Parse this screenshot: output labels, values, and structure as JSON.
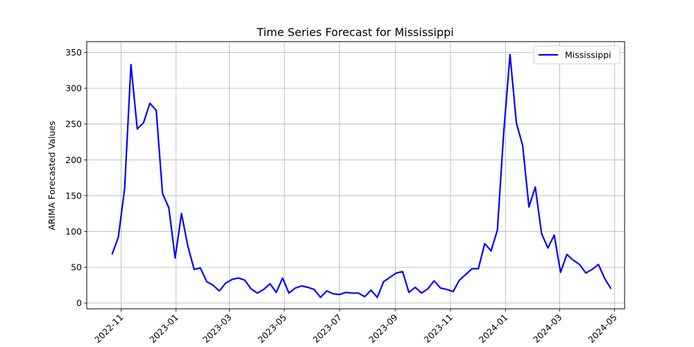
{
  "chart_data": {
    "type": "line",
    "title": "Time Series Forecast for Mississippi",
    "xlabel": "",
    "ylabel": "ARIMA Forecasted Values",
    "ylim": [
      -8,
      365
    ],
    "xlim": [
      "2022-09-24",
      "2024-05-12"
    ],
    "grid": true,
    "legend_position": "top-right",
    "y_ticks": [
      0,
      50,
      100,
      150,
      200,
      250,
      300,
      350
    ],
    "x_ticks": [
      "2022-11",
      "2023-01",
      "2023-03",
      "2023-05",
      "2023-07",
      "2023-09",
      "2023-11",
      "2024-01",
      "2024-03",
      "2024-05"
    ],
    "x_tick_dates": [
      "2022-11-01",
      "2023-01-01",
      "2023-03-01",
      "2023-05-01",
      "2023-07-01",
      "2023-09-01",
      "2023-11-01",
      "2024-01-01",
      "2024-03-01",
      "2024-05-01"
    ],
    "series": [
      {
        "name": "Mississippi",
        "color": "#0000ff",
        "x": [
          "2022-10-22",
          "2022-10-29",
          "2022-11-05",
          "2022-11-12",
          "2022-11-19",
          "2022-11-26",
          "2022-12-03",
          "2022-12-10",
          "2022-12-17",
          "2022-12-24",
          "2022-12-31",
          "2023-01-07",
          "2023-01-14",
          "2023-01-21",
          "2023-01-28",
          "2023-02-04",
          "2023-02-11",
          "2023-02-18",
          "2023-02-25",
          "2023-03-04",
          "2023-03-11",
          "2023-03-18",
          "2023-03-25",
          "2023-04-01",
          "2023-04-08",
          "2023-04-15",
          "2023-04-22",
          "2023-04-29",
          "2023-05-06",
          "2023-05-13",
          "2023-05-20",
          "2023-05-27",
          "2023-06-03",
          "2023-06-10",
          "2023-06-17",
          "2023-06-24",
          "2023-07-01",
          "2023-07-08",
          "2023-07-15",
          "2023-07-22",
          "2023-07-29",
          "2023-08-05",
          "2023-08-12",
          "2023-08-19",
          "2023-08-26",
          "2023-09-02",
          "2023-09-09",
          "2023-09-16",
          "2023-09-23",
          "2023-09-30",
          "2023-10-07",
          "2023-10-14",
          "2023-10-21",
          "2023-10-28",
          "2023-11-04",
          "2023-11-11",
          "2023-11-18",
          "2023-11-25",
          "2023-12-02",
          "2023-12-09",
          "2023-12-16",
          "2023-12-23",
          "2023-12-30",
          "2024-01-06",
          "2024-01-13",
          "2024-01-20",
          "2024-01-27",
          "2024-02-03",
          "2024-02-10",
          "2024-02-17",
          "2024-02-24",
          "2024-03-02",
          "2024-03-09",
          "2024-03-16",
          "2024-03-23",
          "2024-03-30",
          "2024-04-06",
          "2024-04-13",
          "2024-04-20",
          "2024-04-27"
        ],
        "values": [
          68,
          92,
          160,
          333,
          243,
          252,
          279,
          269,
          153,
          133,
          63,
          125,
          80,
          47,
          49,
          30,
          25,
          17,
          28,
          33,
          35,
          32,
          20,
          14,
          19,
          27,
          15,
          35,
          14,
          21,
          24,
          22,
          19,
          8,
          17,
          13,
          12,
          15,
          14,
          14,
          9,
          18,
          8,
          30,
          36,
          42,
          44,
          15,
          22,
          14,
          20,
          31,
          21,
          19,
          16,
          32,
          40,
          48,
          48,
          83,
          73,
          102,
          238,
          347,
          252,
          220,
          134,
          162,
          97,
          77,
          95,
          43,
          68,
          60,
          54,
          42,
          47,
          54,
          34,
          20
        ]
      }
    ]
  }
}
